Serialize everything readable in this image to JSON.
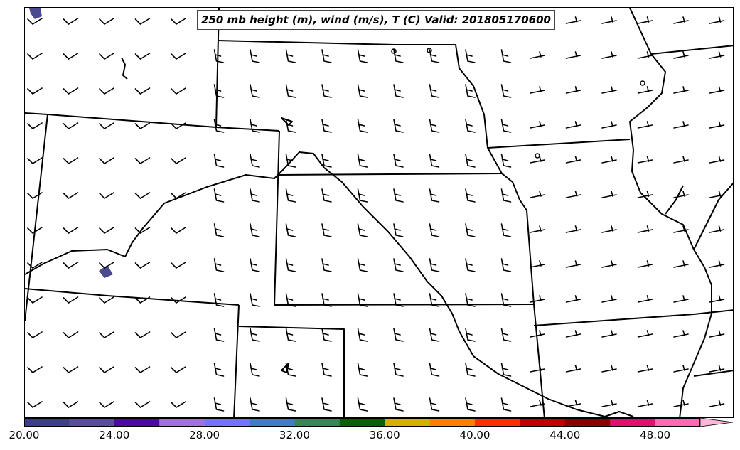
{
  "title": "250 mb height (m), wind (m/s), T (C) Valid: 201805170600",
  "colorbar": {
    "labels": [
      "20.00",
      "24.00",
      "28.00",
      "32.00",
      "36.00",
      "40.00",
      "44.00",
      "48.00"
    ],
    "colors": [
      "#3d3d8f",
      "#5a4d9c",
      "#4a0aa8",
      "#a070e0",
      "#7373ff",
      "#3a7fc8",
      "#2e8b57",
      "#006400",
      "#d4b000",
      "#ff8000",
      "#ff3000",
      "#c00000",
      "#8b0000",
      "#e0106e",
      "#ff69b4"
    ],
    "extend_color": "#ffb6d9"
  }
}
